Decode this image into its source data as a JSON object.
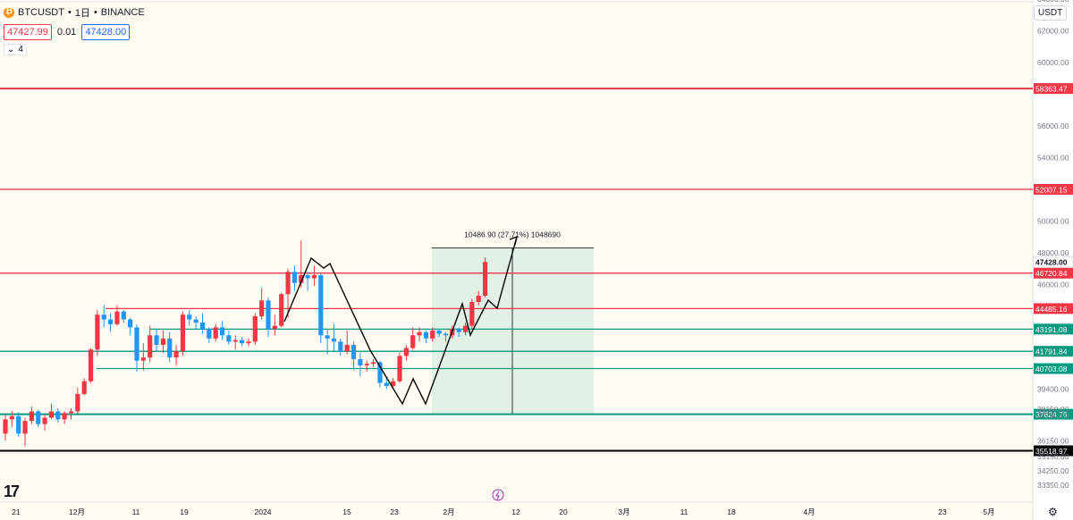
{
  "header": {
    "symbol": "BTCUSDT",
    "interval": "1日",
    "exchange": "BINANCE",
    "bid": "47427.99",
    "spread": "0.01",
    "ask": "47428.00",
    "indicator_count": "4",
    "currency": "USDT"
  },
  "chart_data": {
    "type": "candlestick",
    "ylim": [
      33000,
      66000
    ],
    "y_ticks": [
      "64000.00",
      "62000.00",
      "60000.00",
      "56000.00",
      "54000.00",
      "50000.00",
      "48000.00",
      "46000.00",
      "39400.00",
      "38150.00",
      "37750.00",
      "36150.00",
      "35150.00",
      "34250.00",
      "33350.00"
    ],
    "x_ticks": [
      "21",
      "12月",
      "11",
      "19",
      "2024",
      "15",
      "23",
      "2月",
      "12",
      "20",
      "3月",
      "11",
      "18",
      "4月",
      "23",
      "5月"
    ],
    "price_levels": [
      {
        "label": "58363.47",
        "value": 58363.47,
        "color": "#f23645"
      },
      {
        "label": "52007.15",
        "value": 52007.15,
        "color": "#f23645"
      },
      {
        "label": "46720.84",
        "value": 46720.84,
        "color": "#f23645"
      },
      {
        "label": "44485.16",
        "value": 44485.16,
        "color": "#f23645"
      },
      {
        "label": "43191.08",
        "value": 43191.08,
        "color": "#089981"
      },
      {
        "label": "41791.84",
        "value": 41791.84,
        "color": "#089981"
      },
      {
        "label": "40703.08",
        "value": 40703.08,
        "color": "#089981"
      },
      {
        "label": "37824.76",
        "value": 37824.76,
        "color": "#089981"
      },
      {
        "label": "35518.97",
        "value": 35518.97,
        "color": "#000000"
      }
    ],
    "last_price": {
      "label": "47428.00",
      "value": 47428.0
    },
    "measure_label": "10486.90 (27.71%) 1048690",
    "candles": [
      [
        36600,
        37800,
        36150,
        37500
      ],
      [
        37500,
        38000,
        37000,
        37700
      ],
      [
        37700,
        37950,
        36400,
        36600
      ],
      [
        36600,
        37600,
        35800,
        37400
      ],
      [
        37400,
        38300,
        37200,
        38000
      ],
      [
        38000,
        38100,
        37000,
        37200
      ],
      [
        37200,
        37800,
        36800,
        37600
      ],
      [
        37600,
        38500,
        37500,
        38000
      ],
      [
        38000,
        38200,
        37300,
        37500
      ],
      [
        37500,
        38000,
        37200,
        37900
      ],
      [
        37900,
        38200,
        37500,
        38000
      ],
      [
        38000,
        39500,
        37800,
        39100
      ],
      [
        39100,
        40100,
        39000,
        39900
      ],
      [
        39900,
        42000,
        39800,
        41900
      ],
      [
        41900,
        44400,
        41500,
        44100
      ],
      [
        44100,
        44700,
        43300,
        43800
      ],
      [
        43800,
        44200,
        43000,
        43500
      ],
      [
        43500,
        44700,
        43400,
        44300
      ],
      [
        44300,
        44400,
        43600,
        43800
      ],
      [
        43800,
        43900,
        42800,
        43300
      ],
      [
        43300,
        43500,
        40500,
        41200
      ],
      [
        41200,
        42300,
        40600,
        41400
      ],
      [
        41400,
        43400,
        41100,
        42800
      ],
      [
        42800,
        43200,
        41800,
        42200
      ],
      [
        42200,
        43100,
        41700,
        42600
      ],
      [
        42600,
        43000,
        41100,
        41400
      ],
      [
        41400,
        42200,
        40900,
        41800
      ],
      [
        41800,
        44300,
        41500,
        44100
      ],
      [
        44100,
        44400,
        43400,
        43800
      ],
      [
        43800,
        44000,
        43200,
        43600
      ],
      [
        43600,
        44200,
        42900,
        43200
      ],
      [
        43200,
        43300,
        42300,
        42600
      ],
      [
        42600,
        43500,
        42400,
        43300
      ],
      [
        43300,
        43700,
        42500,
        42800
      ],
      [
        42800,
        43100,
        42200,
        42400
      ],
      [
        42400,
        42800,
        41900,
        42500
      ],
      [
        42500,
        42700,
        42100,
        42300
      ],
      [
        42300,
        42600,
        42100,
        42400
      ],
      [
        42400,
        44200,
        42200,
        44000
      ],
      [
        44000,
        45800,
        43800,
        45000
      ],
      [
        45000,
        45200,
        42700,
        43200
      ],
      [
        43200,
        44100,
        42800,
        43400
      ],
      [
        43400,
        45500,
        43300,
        45400
      ],
      [
        45400,
        47000,
        43900,
        46800
      ],
      [
        46800,
        47200,
        45600,
        46100
      ],
      [
        46100,
        48800,
        45800,
        46600
      ],
      [
        46600,
        46800,
        45600,
        46400
      ],
      [
        46400,
        47200,
        45900,
        46600
      ],
      [
        46600,
        46700,
        42300,
        42800
      ],
      [
        42800,
        43200,
        41600,
        42600
      ],
      [
        42600,
        43500,
        41800,
        42400
      ],
      [
        42400,
        42600,
        41500,
        41800
      ],
      [
        41800,
        43100,
        41600,
        42200
      ],
      [
        42200,
        42400,
        40600,
        41300
      ],
      [
        41300,
        41700,
        40200,
        40900
      ],
      [
        40900,
        41200,
        40500,
        41000
      ],
      [
        41000,
        41300,
        40800,
        41100
      ],
      [
        41100,
        41200,
        39500,
        39800
      ],
      [
        39800,
        40200,
        39400,
        39600
      ],
      [
        39600,
        40100,
        39500,
        39900
      ],
      [
        39900,
        41700,
        39800,
        41500
      ],
      [
        41500,
        42200,
        41200,
        42000
      ],
      [
        42000,
        43300,
        41900,
        42800
      ],
      [
        42800,
        43300,
        42400,
        43000
      ],
      [
        43000,
        43100,
        42300,
        42600
      ],
      [
        42600,
        43300,
        42400,
        43100
      ],
      [
        43100,
        43200,
        42700,
        42900
      ],
      [
        42900,
        43000,
        42400,
        42800
      ],
      [
        42800,
        43400,
        42600,
        43200
      ],
      [
        43200,
        43300,
        42700,
        43000
      ],
      [
        43000,
        43600,
        42800,
        43400
      ],
      [
        43400,
        45100,
        43200,
        44900
      ],
      [
        44900,
        45600,
        44700,
        45300
      ],
      [
        45300,
        47700,
        45200,
        47428
      ]
    ]
  }
}
